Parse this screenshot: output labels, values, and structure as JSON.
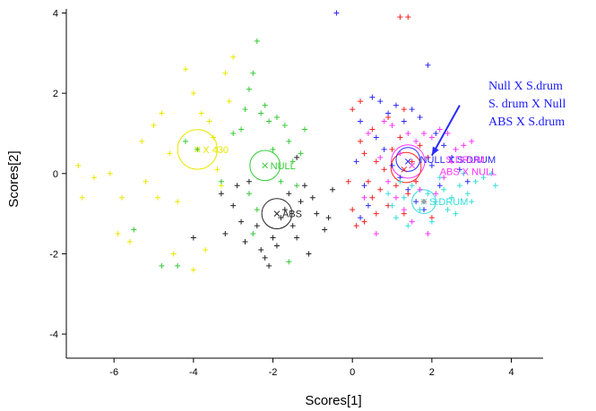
{
  "chart_data": {
    "type": "scatter",
    "xlabel": "Scores[1]",
    "ylabel": "Scores[2]",
    "xlim": [
      -7.2,
      4.8
    ],
    "ylim": [
      -4.6,
      4.1
    ],
    "xticks": [
      -6,
      -4,
      -2,
      0,
      2,
      4
    ],
    "yticks": [
      -4,
      -2,
      0,
      2,
      4
    ],
    "grid": false,
    "colors": {
      "yellow": "#e8e800",
      "green": "#33cc33",
      "black": "#222222",
      "red": "#ff2020",
      "magenta": "#ff33ff",
      "blue": "#2a2aff",
      "cyan": "#33dddd"
    },
    "groups": [
      {
        "color": "yellow",
        "centroid": [
          -3.9,
          0.6
        ],
        "label": "X 430",
        "points": [
          [
            -6.9,
            0.2
          ],
          [
            -6.5,
            -0.1
          ],
          [
            -6.1,
            0.0
          ],
          [
            -5.8,
            -0.6
          ],
          [
            -5.6,
            -1.7
          ],
          [
            -5.9,
            -1.5
          ],
          [
            -5.3,
            0.8
          ],
          [
            -5.0,
            1.2
          ],
          [
            -4.8,
            1.5
          ],
          [
            -4.6,
            0.5
          ],
          [
            -4.4,
            -0.7
          ],
          [
            -4.2,
            2.6
          ],
          [
            -4.0,
            2.0
          ],
          [
            -3.8,
            1.5
          ],
          [
            -3.6,
            1.3
          ],
          [
            -3.5,
            0.9
          ],
          [
            -3.4,
            0.1
          ],
          [
            -3.2,
            2.5
          ],
          [
            -3.0,
            2.9
          ],
          [
            -4.0,
            -2.4
          ],
          [
            -3.7,
            -1.9
          ],
          [
            -4.5,
            -2.0
          ],
          [
            -3.3,
            -0.3
          ],
          [
            -5.2,
            -0.2
          ],
          [
            -4.9,
            -0.6
          ],
          [
            -3.1,
            1.8
          ],
          [
            -6.8,
            -0.6
          ]
        ]
      },
      {
        "color": "green",
        "centroid": [
          -2.2,
          0.2
        ],
        "label": "NULL",
        "points": [
          [
            -3.9,
            0.6
          ],
          [
            -3.3,
            -0.2
          ],
          [
            -3.0,
            1.0
          ],
          [
            -2.8,
            1.1
          ],
          [
            -2.7,
            1.6
          ],
          [
            -2.6,
            2.1
          ],
          [
            -2.5,
            2.5
          ],
          [
            -2.4,
            3.3
          ],
          [
            -2.3,
            1.5
          ],
          [
            -2.2,
            1.7
          ],
          [
            -2.1,
            1.3
          ],
          [
            -2.0,
            0.6
          ],
          [
            -1.9,
            1.4
          ],
          [
            -1.7,
            1.2
          ],
          [
            -1.6,
            0.8
          ],
          [
            -1.5,
            0.3
          ],
          [
            -1.8,
            -0.2
          ],
          [
            -1.4,
            -0.3
          ],
          [
            -1.3,
            0.5
          ],
          [
            -1.2,
            1.1
          ],
          [
            -2.4,
            -0.9
          ],
          [
            -2.5,
            -1.5
          ],
          [
            -4.4,
            -2.3
          ],
          [
            -4.8,
            -2.3
          ],
          [
            -5.5,
            -1.4
          ],
          [
            -1.6,
            -2.2
          ],
          [
            -2.6,
            -0.5
          ],
          [
            -4.2,
            0.8
          ]
        ]
      },
      {
        "color": "black",
        "centroid": [
          -1.9,
          -1.0
        ],
        "label": "ABS",
        "points": [
          [
            -3.3,
            -0.5
          ],
          [
            -3.2,
            -1.5
          ],
          [
            -3.0,
            -0.8
          ],
          [
            -2.9,
            -0.3
          ],
          [
            -2.8,
            -1.2
          ],
          [
            -2.7,
            -1.7
          ],
          [
            -2.4,
            -1.3
          ],
          [
            -2.3,
            -1.9
          ],
          [
            -2.2,
            -2.1
          ],
          [
            -2.1,
            -2.3
          ],
          [
            -2.0,
            -1.6
          ],
          [
            -1.9,
            -1.8
          ],
          [
            -1.8,
            -1.1
          ],
          [
            -1.7,
            -0.9
          ],
          [
            -1.6,
            -0.5
          ],
          [
            -1.5,
            -1.3
          ],
          [
            -1.4,
            -1.6
          ],
          [
            -1.3,
            -0.7
          ],
          [
            -1.2,
            -0.3
          ],
          [
            -1.0,
            -0.6
          ],
          [
            -0.9,
            -1.0
          ],
          [
            -0.6,
            -1.1
          ],
          [
            -0.5,
            -0.4
          ],
          [
            -2.6,
            -0.2
          ],
          [
            -4.0,
            -1.6
          ],
          [
            -1.1,
            -2.0
          ],
          [
            -0.7,
            -1.4
          ],
          [
            -1.4,
            0.4
          ]
        ]
      },
      {
        "color": "red",
        "centroid": [
          1.3,
          0.1
        ],
        "label": "",
        "points": [
          [
            0.0,
            1.6
          ],
          [
            0.2,
            0.8
          ],
          [
            0.3,
            0.5
          ],
          [
            0.4,
            -0.2
          ],
          [
            0.5,
            -0.6
          ],
          [
            0.6,
            0.3
          ],
          [
            0.7,
            -0.4
          ],
          [
            0.8,
            0.1
          ],
          [
            0.9,
            -0.8
          ],
          [
            1.0,
            0.6
          ],
          [
            1.1,
            -0.3
          ],
          [
            1.2,
            0.9
          ],
          [
            1.3,
            -1.0
          ],
          [
            1.4,
            -0.5
          ],
          [
            1.5,
            0.3
          ],
          [
            1.6,
            -0.2
          ],
          [
            1.7,
            0.7
          ],
          [
            1.8,
            -0.7
          ],
          [
            1.9,
            0.4
          ],
          [
            2.0,
            -1.1
          ],
          [
            0.1,
            -1.3
          ],
          [
            0.3,
            -1.2
          ],
          [
            0.6,
            -1.0
          ],
          [
            1.2,
            3.9
          ],
          [
            1.4,
            3.9
          ],
          [
            0.5,
            1.1
          ],
          [
            0.9,
            1.4
          ],
          [
            1.3,
            1.6
          ],
          [
            0.2,
            1.8
          ],
          [
            0.0,
            -0.9
          ],
          [
            -0.1,
            -0.2
          ]
        ]
      },
      {
        "color": "magenta",
        "centroid": [
          1.5,
          0.2
        ],
        "label": "",
        "points": [
          [
            0.4,
            1.0
          ],
          [
            0.8,
            1.3
          ],
          [
            1.0,
            1.2
          ],
          [
            1.2,
            0.5
          ],
          [
            1.4,
            1.0
          ],
          [
            1.6,
            0.8
          ],
          [
            1.8,
            1.0
          ],
          [
            2.0,
            0.9
          ],
          [
            2.2,
            1.1
          ],
          [
            2.4,
            1.0
          ],
          [
            2.6,
            0.6
          ],
          [
            2.8,
            0.7
          ],
          [
            3.0,
            0.8
          ],
          [
            1.1,
            -0.6
          ],
          [
            1.3,
            -0.9
          ],
          [
            1.7,
            -0.4
          ],
          [
            2.1,
            -0.5
          ],
          [
            2.3,
            -0.1
          ],
          [
            0.7,
            0.4
          ],
          [
            0.9,
            -0.2
          ],
          [
            1.5,
            -1.2
          ],
          [
            1.9,
            -1.5
          ],
          [
            0.6,
            -1.5
          ],
          [
            2.5,
            0.3
          ],
          [
            0.3,
            -0.6
          ]
        ]
      },
      {
        "color": "blue",
        "centroid": [
          1.4,
          0.3
        ],
        "label": "",
        "points": [
          [
            -0.4,
            4.0
          ],
          [
            0.2,
            1.3
          ],
          [
            0.5,
            1.9
          ],
          [
            0.7,
            1.8
          ],
          [
            0.9,
            1.5
          ],
          [
            1.1,
            1.7
          ],
          [
            1.3,
            1.3
          ],
          [
            1.5,
            1.6
          ],
          [
            1.7,
            1.4
          ],
          [
            1.9,
            2.7
          ],
          [
            2.1,
            1.0
          ],
          [
            2.3,
            0.7
          ],
          [
            2.5,
            0.4
          ],
          [
            2.7,
            0.1
          ],
          [
            2.9,
            -0.2
          ],
          [
            1.0,
            0.2
          ],
          [
            1.2,
            -0.1
          ],
          [
            1.4,
            -0.4
          ],
          [
            1.6,
            -0.7
          ],
          [
            1.8,
            -0.9
          ],
          [
            0.4,
            -0.8
          ],
          [
            0.2,
            -1.1
          ],
          [
            0.6,
            0.9
          ],
          [
            0.8,
            0.6
          ],
          [
            2.0,
            0.2
          ],
          [
            2.2,
            -0.3
          ],
          [
            0.1,
            0.3
          ],
          [
            0.3,
            -0.3
          ]
        ]
      },
      {
        "color": "cyan",
        "centroid": [
          1.8,
          -0.7
        ],
        "label": "S.DRUM",
        "points": [
          [
            0.9,
            -0.5
          ],
          [
            1.0,
            -0.8
          ],
          [
            1.1,
            -1.1
          ],
          [
            1.3,
            -0.6
          ],
          [
            1.5,
            -0.3
          ],
          [
            1.7,
            -0.9
          ],
          [
            1.9,
            -0.5
          ],
          [
            2.1,
            -0.7
          ],
          [
            2.3,
            -0.4
          ],
          [
            2.5,
            -0.6
          ],
          [
            2.7,
            -0.3
          ],
          [
            2.9,
            -0.5
          ],
          [
            3.1,
            -0.2
          ],
          [
            3.3,
            -0.1
          ],
          [
            3.5,
            0.0
          ],
          [
            3.6,
            -0.3
          ],
          [
            2.4,
            -0.9
          ],
          [
            2.6,
            -1.0
          ],
          [
            2.0,
            -1.2
          ],
          [
            1.4,
            -1.3
          ],
          [
            1.2,
            -0.2
          ],
          [
            2.8,
            0.0
          ],
          [
            3.0,
            -0.7
          ],
          [
            2.2,
            -0.1
          ]
        ]
      }
    ],
    "circles": [
      {
        "color": "yellow",
        "cx": -3.9,
        "cy": 0.6,
        "r": 0.5,
        "label": "X 430"
      },
      {
        "color": "green",
        "cx": -2.2,
        "cy": 0.2,
        "r": 0.38,
        "label": "NULL"
      },
      {
        "color": "black",
        "cx": -1.9,
        "cy": -1.0,
        "r": 0.38,
        "label": "ABS"
      },
      {
        "color": "magenta",
        "cx": 1.4,
        "cy": 0.3,
        "r": 0.42,
        "label": ""
      },
      {
        "color": "red",
        "cx": 1.35,
        "cy": 0.15,
        "r": 0.38,
        "label": ""
      },
      {
        "color": "blue",
        "cx": 1.4,
        "cy": 0.35,
        "r": 0.3,
        "label": ""
      },
      {
        "color": "cyan",
        "cx": 1.8,
        "cy": -0.7,
        "r": 0.3,
        "label": "S.DRUM"
      }
    ],
    "cluster_labels": [
      {
        "text": "NULL X S.DRUM",
        "color": "blue",
        "x": 1.7,
        "y": 0.35
      },
      {
        "text": "S.DRUM",
        "color": "magenta",
        "x": 2.35,
        "y": 0.35
      },
      {
        "text": "ABS X NULL",
        "color": "magenta",
        "x": 2.2,
        "y": 0.05
      }
    ],
    "annotations": [
      {
        "text": "Null X S.drum",
        "color": "blue"
      },
      {
        "text": "S. drum X Null",
        "color": "blue"
      },
      {
        "text": "ABS X S.drum",
        "color": "blue"
      }
    ],
    "arrow": {
      "from": [
        2.7,
        1.7
      ],
      "to": [
        2.0,
        0.45
      ],
      "color": "blue"
    }
  }
}
